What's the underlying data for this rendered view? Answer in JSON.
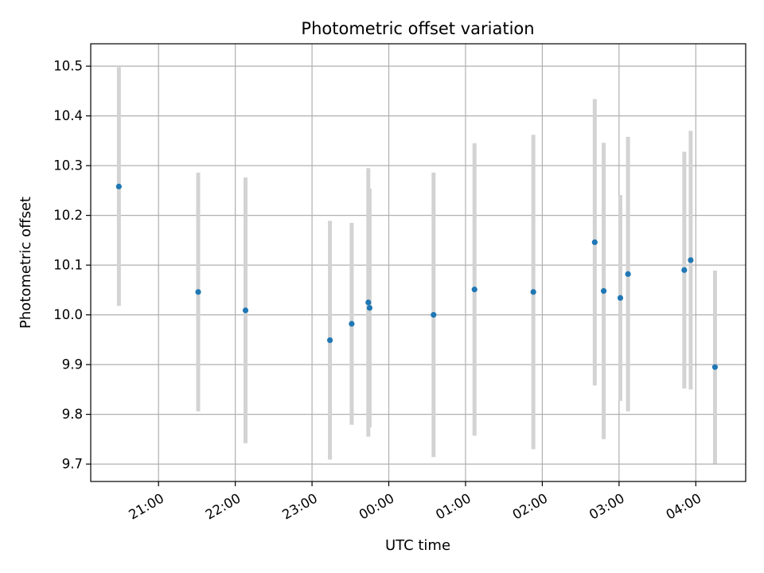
{
  "chart_data": {
    "type": "scatter",
    "title": "Photometric offset variation",
    "xlabel": "UTC time",
    "ylabel": "Photometric offset",
    "grid": true,
    "x_axis_kind": "time",
    "x_range": [
      "20:07",
      "04:39"
    ],
    "ylim": [
      9.665,
      10.545
    ],
    "x_ticks": [
      {
        "t": "21:00",
        "label": "21:00"
      },
      {
        "t": "22:00",
        "label": "22:00"
      },
      {
        "t": "23:00",
        "label": "23:00"
      },
      {
        "t": "00:00",
        "label": "00:00"
      },
      {
        "t": "01:00",
        "label": "01:00"
      },
      {
        "t": "02:00",
        "label": "02:00"
      },
      {
        "t": "03:00",
        "label": "03:00"
      },
      {
        "t": "04:00",
        "label": "04:00"
      }
    ],
    "y_ticks": [
      {
        "v": 9.7,
        "label": "9.7"
      },
      {
        "v": 9.8,
        "label": "9.8"
      },
      {
        "v": 9.9,
        "label": "9.9"
      },
      {
        "v": 10.0,
        "label": "10.0"
      },
      {
        "v": 10.1,
        "label": "10.1"
      },
      {
        "v": 10.2,
        "label": "10.2"
      },
      {
        "v": 10.3,
        "label": "10.3"
      },
      {
        "v": 10.4,
        "label": "10.4"
      },
      {
        "v": 10.5,
        "label": "10.5"
      }
    ],
    "colors": {
      "point": "#1f77b4",
      "errorbar": "#d3d3d3",
      "grid": "#b0b0b0"
    },
    "series": [
      {
        "points": [
          {
            "t": "20:29",
            "y": 10.258,
            "ylo": 10.018,
            "yhi": 10.498
          },
          {
            "t": "21:31",
            "y": 10.046,
            "ylo": 9.806,
            "yhi": 10.286
          },
          {
            "t": "22:08",
            "y": 10.009,
            "ylo": 9.742,
            "yhi": 10.276
          },
          {
            "t": "23:14",
            "y": 9.949,
            "ylo": 9.709,
            "yhi": 10.189
          },
          {
            "t": "23:31",
            "y": 9.982,
            "ylo": 9.779,
            "yhi": 10.185
          },
          {
            "t": "23:44",
            "y": 10.025,
            "ylo": 9.755,
            "yhi": 10.295
          },
          {
            "t": "23:45",
            "y": 10.014,
            "ylo": 9.774,
            "yhi": 10.254
          },
          {
            "t": "00:35",
            "y": 10.0,
            "ylo": 9.714,
            "yhi": 10.286
          },
          {
            "t": "01:07",
            "y": 10.051,
            "ylo": 9.757,
            "yhi": 10.345
          },
          {
            "t": "01:53",
            "y": 10.046,
            "ylo": 9.73,
            "yhi": 10.362
          },
          {
            "t": "02:41",
            "y": 10.146,
            "ylo": 9.858,
            "yhi": 10.434
          },
          {
            "t": "02:48",
            "y": 10.048,
            "ylo": 9.75,
            "yhi": 10.346
          },
          {
            "t": "03:01",
            "y": 10.034,
            "ylo": 9.827,
            "yhi": 10.241
          },
          {
            "t": "03:07",
            "y": 10.082,
            "ylo": 9.806,
            "yhi": 10.358
          },
          {
            "t": "03:51",
            "y": 10.09,
            "ylo": 9.852,
            "yhi": 10.328
          },
          {
            "t": "03:56",
            "y": 10.11,
            "ylo": 9.85,
            "yhi": 10.37
          },
          {
            "t": "04:15",
            "y": 9.895,
            "ylo": 9.701,
            "yhi": 10.089
          }
        ]
      }
    ]
  }
}
